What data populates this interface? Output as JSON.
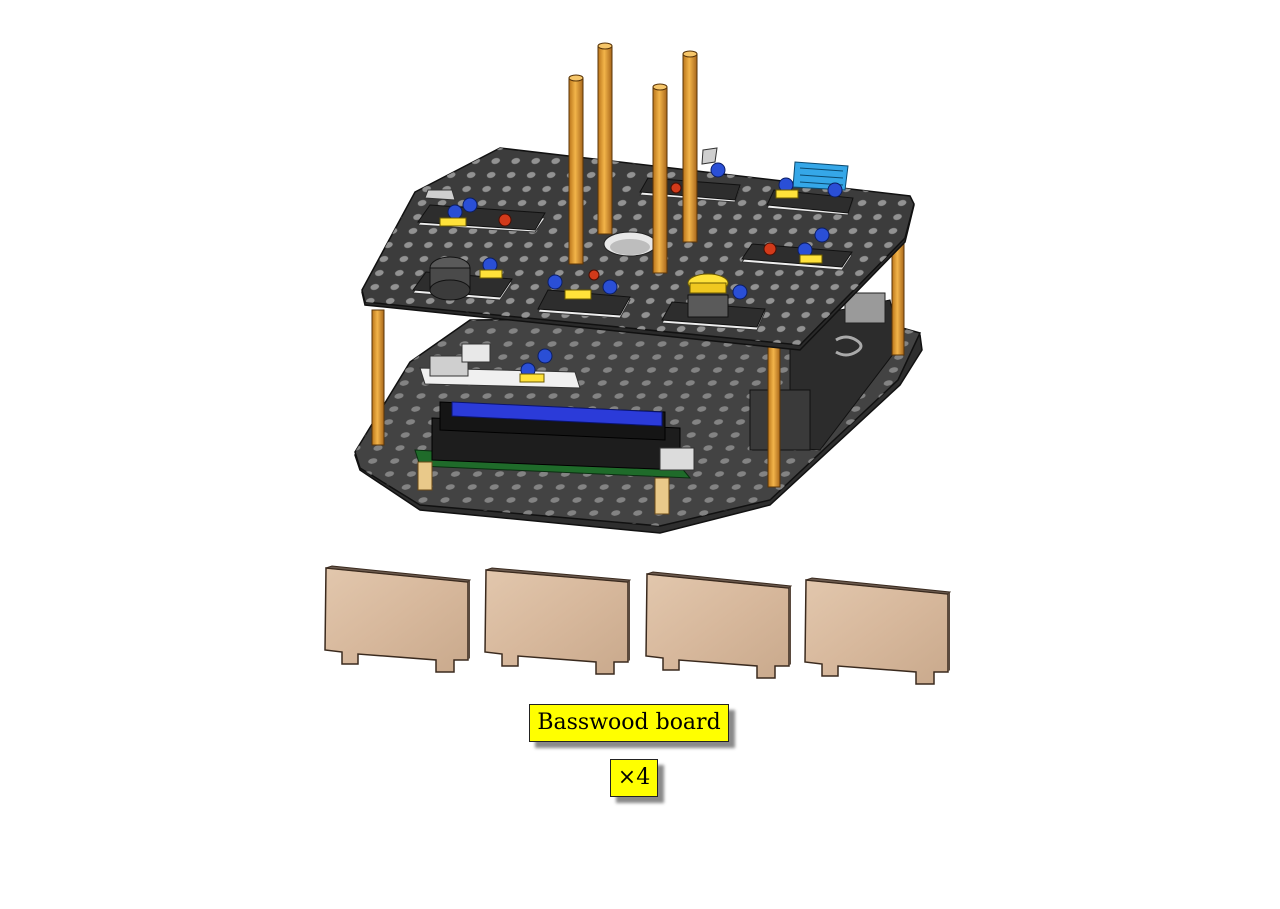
{
  "callouts": {
    "part_name": "Basswood board",
    "quantity": "×4"
  },
  "colors": {
    "callout_bg": "#ffff00",
    "plate": "#3b3b3b",
    "standoff": "#e8a33a",
    "module_pcb": "#f2f2f2",
    "component_yellow": "#ffe23a",
    "knob_blue": "#2a4fd6",
    "lcd_blue": "#2b3bd9",
    "basswood": "#d7b89c"
  },
  "icons": [
    "robot-chassis-assembly",
    "basswood-board-part"
  ]
}
